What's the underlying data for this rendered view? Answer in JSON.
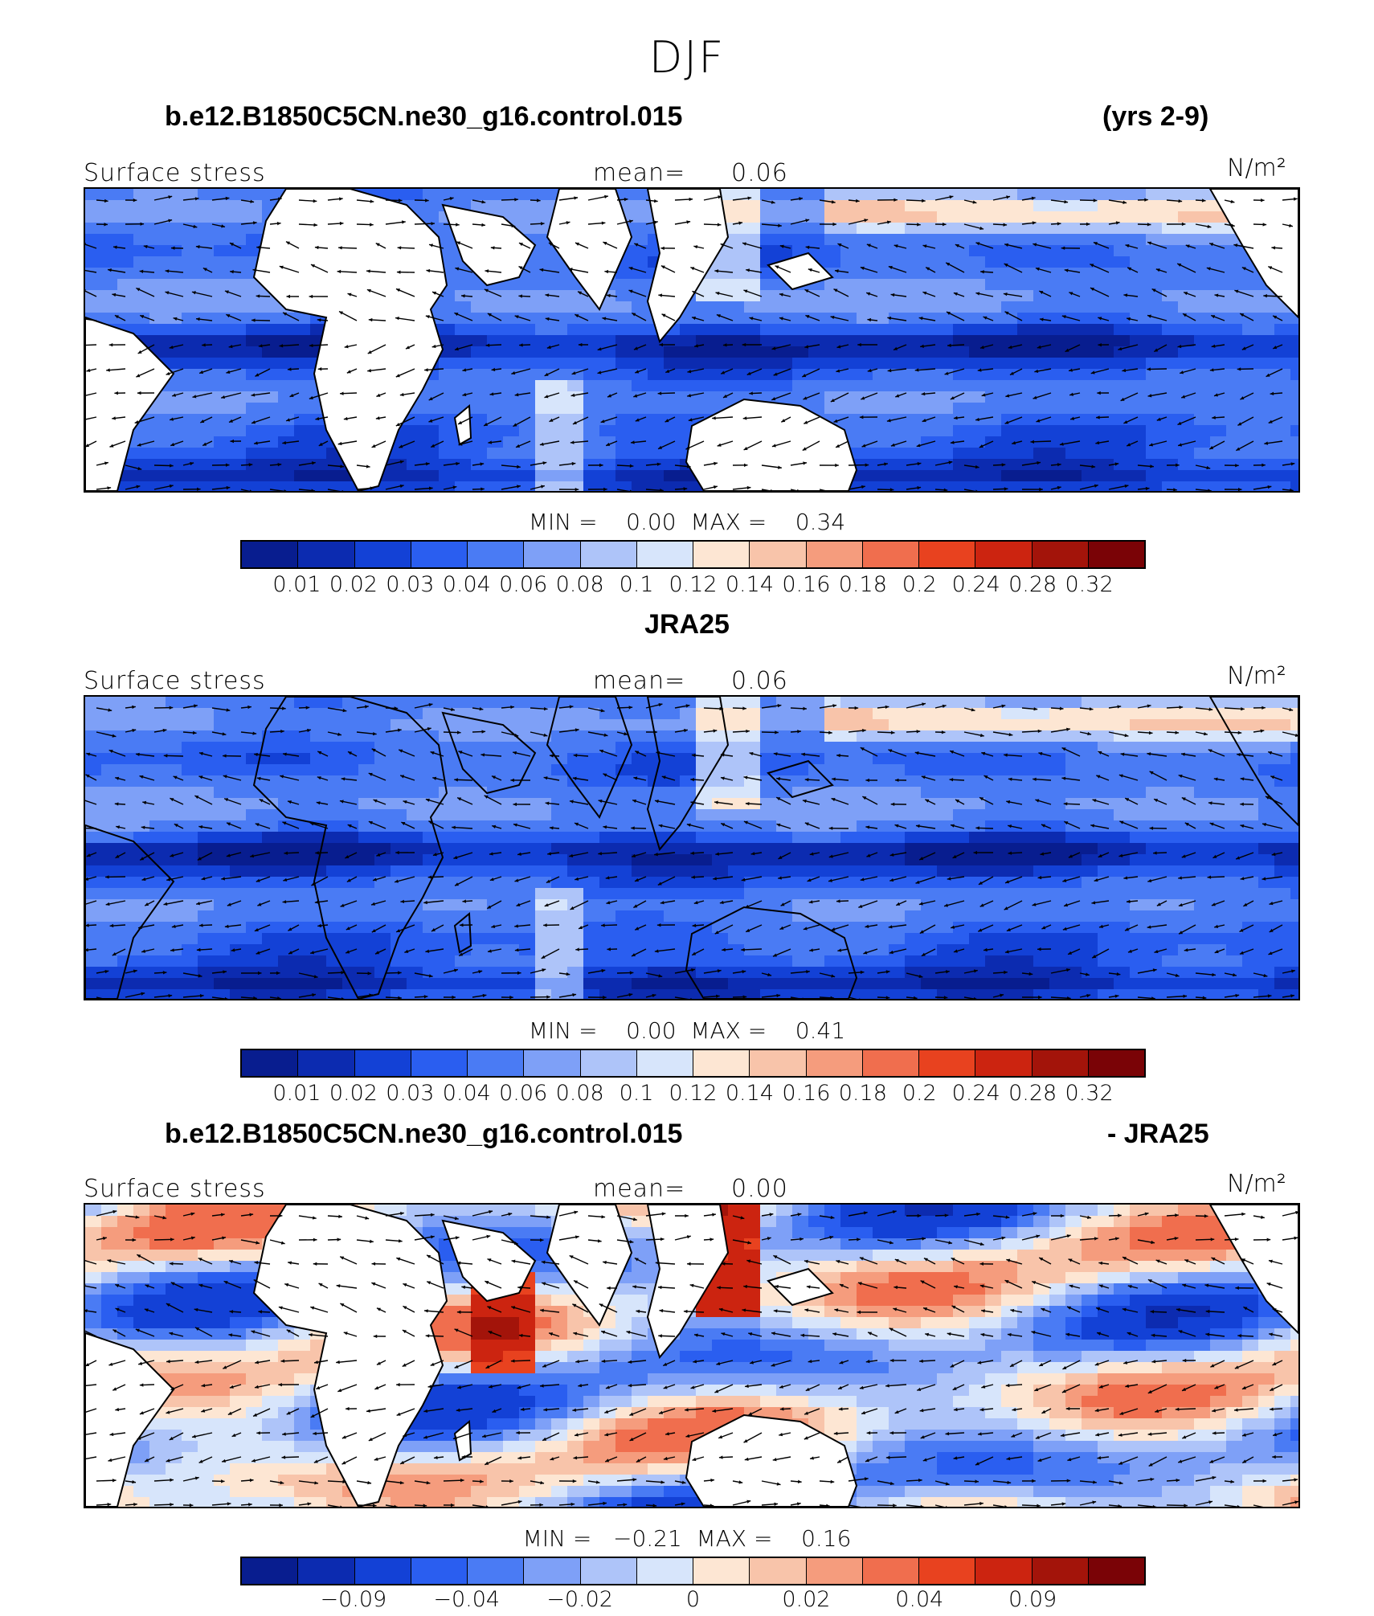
{
  "title": "DJF",
  "palette": [
    "#081d8f",
    "#0c2bb0",
    "#1341d6",
    "#2a5ef0",
    "#4a7bf4",
    "#7ea0f7",
    "#aec4f9",
    "#d7e5fb",
    "#fde6d3",
    "#f8c4aa",
    "#f59c7d",
    "#f06e4e",
    "#e8421f",
    "#cc2410",
    "#a3140a",
    "#7a0306"
  ],
  "panels": [
    {
      "case_left": "b.e12.B1850C5CN.ne30_g16.control.015",
      "case_right": "(yrs 2-9)",
      "field_label": "Surface stress",
      "mean_label": "mean=",
      "mean_value": "0.06",
      "units": "N/m²",
      "min_max": "MIN =    0.00  MAX =    0.34",
      "colorbar_ticks": [
        "0.01",
        "0.02",
        "0.03",
        "0.04",
        "0.06",
        "0.08",
        "0.1",
        "0.12",
        "0.14",
        "0.16",
        "0.18",
        "0.2",
        "0.24",
        "0.28",
        "0.32"
      ],
      "land_masked": true,
      "kind": "absolute"
    },
    {
      "case_left": "JRA25",
      "case_right": "",
      "field_label": "Surface stress",
      "mean_label": "mean=",
      "mean_value": "0.06",
      "units": "N/m²",
      "min_max": "MIN =    0.00  MAX =    0.41",
      "colorbar_ticks": [
        "0.01",
        "0.02",
        "0.03",
        "0.04",
        "0.06",
        "0.08",
        "0.1",
        "0.12",
        "0.14",
        "0.16",
        "0.18",
        "0.2",
        "0.24",
        "0.28",
        "0.32"
      ],
      "land_masked": false,
      "kind": "absolute"
    },
    {
      "case_left": "b.e12.B1850C5CN.ne30_g16.control.015",
      "case_right": "- JRA25",
      "field_label": "Surface stress",
      "mean_label": "mean=",
      "mean_value": "0.00",
      "units": "N/m²",
      "min_max": "MIN =   −0.21  MAX =    0.16",
      "colorbar_ticks": [
        "−0.09",
        "−0.04",
        "−0.02",
        "0",
        "0.02",
        "0.04",
        "0.09"
      ],
      "land_masked": true,
      "kind": "difference"
    }
  ]
}
